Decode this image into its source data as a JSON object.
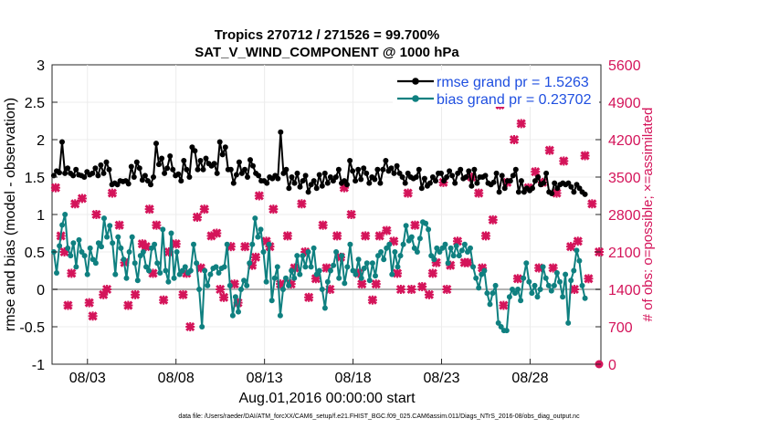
{
  "chart_data": {
    "type": "line",
    "title": "Tropics 270712 / 271526 = 99.700%",
    "subtitle": "SAT_V_WIND_COMPONENT @ 1000 hPa",
    "xlabel": "Aug.01,2016 00:00:00 start",
    "ylabel": "rmse and bias (model - observation)",
    "ylabel_right": "# of obs: o=possible; ×=assimilated",
    "footer": "data file: /Users/raeder/DAI/ATM_forcXX/CAM6_setup/f.e21.FHIST_BGC.f09_025.CAM6assim.011/Diags_NTrS_2016-08/obs_diag_output.nc",
    "x_tick_labels": [
      "08/03",
      "08/08",
      "08/13",
      "08/18",
      "08/23",
      "08/28"
    ],
    "x_tick_days": [
      3,
      8,
      13,
      18,
      23,
      28
    ],
    "xlim": [
      1,
      32
    ],
    "ylim": [
      -1,
      3
    ],
    "y_ticks": [
      -1,
      -0.5,
      0,
      0.5,
      1,
      1.5,
      2,
      2.5,
      3
    ],
    "y_tick_labels": [
      "-1",
      "-0.5",
      "0",
      "0.5",
      "1",
      "1.5",
      "2",
      "2.5",
      "3"
    ],
    "ylim_right": [
      0,
      5600
    ],
    "y_ticks_right": [
      0,
      700,
      1400,
      2100,
      2800,
      3500,
      4200,
      4900,
      5600
    ],
    "grid": true,
    "legend_position": "top-right",
    "colors": {
      "rmse": "#000000",
      "bias": "#0f8080",
      "obs": "#d4145a",
      "zero_line": "#b3b3b3",
      "legend_text": "#1f4fe0"
    },
    "series": [
      {
        "name": "rmse grand pr = 1.5263",
        "color": "#000000",
        "values": [
          1.52,
          1.58,
          1.56,
          1.97,
          1.55,
          1.62,
          1.55,
          1.52,
          1.6,
          1.53,
          1.52,
          1.5,
          1.57,
          1.53,
          1.55,
          1.62,
          1.52,
          1.66,
          1.55,
          1.7,
          1.6,
          1.4,
          1.42,
          1.4,
          1.45,
          1.44,
          1.45,
          1.41,
          1.64,
          1.5,
          1.7,
          1.62,
          1.46,
          1.52,
          1.45,
          1.4,
          1.5,
          1.95,
          1.67,
          1.75,
          1.55,
          1.62,
          1.78,
          1.6,
          1.52,
          1.54,
          1.45,
          1.72,
          1.6,
          1.5,
          1.9,
          1.85,
          1.6,
          1.72,
          1.6,
          1.75,
          1.68,
          1.65,
          1.68,
          1.55,
          1.97,
          1.8,
          1.9,
          1.6,
          1.6,
          1.42,
          1.53,
          1.7,
          1.55,
          1.6,
          1.5,
          1.73,
          1.65,
          1.55,
          1.52,
          1.45,
          1.45,
          1.42,
          1.5,
          1.48,
          1.52,
          1.48,
          2.1,
          1.55,
          1.6,
          1.35,
          1.5,
          1.42,
          1.55,
          1.37,
          1.45,
          1.52,
          1.3,
          1.4,
          1.45,
          1.35,
          1.53,
          1.38,
          1.55,
          1.42,
          1.5,
          1.45,
          1.5,
          1.6,
          1.42,
          1.45,
          1.4,
          1.72,
          1.58,
          1.45,
          1.6,
          1.47,
          1.62,
          1.55,
          1.42,
          1.5,
          1.47,
          1.6,
          1.42,
          1.6,
          1.72,
          1.58,
          1.62,
          1.55,
          1.65,
          1.55,
          1.5,
          1.42,
          1.55,
          1.5,
          1.48,
          1.5,
          1.6,
          1.35,
          1.48,
          1.38,
          1.42,
          1.5,
          1.45,
          1.55,
          1.55,
          1.45,
          1.5,
          1.58,
          1.52,
          1.42,
          1.55,
          1.6,
          1.48,
          1.5,
          1.58,
          1.38,
          1.6,
          1.42,
          1.5,
          1.5,
          1.52,
          1.42,
          1.4,
          1.43,
          1.55,
          1.3,
          1.52,
          1.35,
          1.45,
          1.45,
          1.52,
          1.6,
          1.3,
          1.45,
          1.3,
          1.35,
          1.32,
          1.35,
          1.45,
          1.5,
          1.4,
          1.42,
          1.55,
          1.3,
          1.28,
          1.42,
          1.35,
          1.4,
          1.42,
          1.4,
          1.42,
          1.37,
          1.3,
          1.4,
          1.35,
          1.3,
          1.27
        ]
      },
      {
        "name": "bias grand pr = 0.23702",
        "color": "#0f8080",
        "values": [
          0.5,
          0.22,
          0.58,
          0.86,
          1.0,
          0.55,
          0.45,
          0.62,
          0.3,
          0.66,
          0.5,
          0.45,
          0.2,
          0.55,
          0.4,
          0.35,
          0.62,
          0.57,
          0.95,
          0.7,
          0.85,
          0.62,
          0.2,
          0.7,
          0.55,
          0.4,
          0.15,
          0.5,
          0.7,
          0.35,
          0.12,
          0.45,
          0.5,
          0.3,
          0.25,
          0.55,
          0.6,
          0.35,
          0.22,
          0.8,
          0.25,
          0.1,
          0.75,
          0.15,
          0.5,
          0.2,
          0.25,
          0.3,
          0.22,
          0.25,
          0.6,
          0.35,
          0.0,
          -0.5,
          0.25,
          0.05,
          0.2,
          0.28,
          0.3,
          0.22,
          0.28,
          0.3,
          0.6,
          0.05,
          -0.35,
          -0.1,
          -0.3,
          0.0,
          0.12,
          0.05,
          0.35,
          0.6,
          0.95,
          0.7,
          0.8,
          0.5,
          0.1,
          0.6,
          -0.15,
          0.15,
          0.3,
          -0.35,
          0.0,
          0.15,
          0.05,
          0.25,
          0.15,
          0.45,
          0.2,
          0.45,
          0.3,
          0.5,
          0.3,
          0.55,
          0.2,
          0.25,
          0.0,
          -0.25,
          0.1,
          0.25,
          0.32,
          0.5,
          0.15,
          0.45,
          0.08,
          0.3,
          0.6,
          0.25,
          0.2,
          0.4,
          0.15,
          0.28,
          0.35,
          0.12,
          0.35,
          0.18,
          0.45,
          0.5,
          0.4,
          0.55,
          0.6,
          0.2,
          0.5,
          0.3,
          0.45,
          0.6,
          0.85,
          0.65,
          0.7,
          0.55,
          0.5,
          0.68,
          0.9,
          0.88,
          0.8,
          0.45,
          0.4,
          0.55,
          0.5,
          0.55,
          0.6,
          0.35,
          0.55,
          0.45,
          0.58,
          0.45,
          0.52,
          0.6,
          0.5,
          0.55,
          0.3,
          0.15,
          0.02,
          0.2,
          0.25,
          -0.05,
          -0.2,
          -0.05,
          0.05,
          -0.45,
          -0.5,
          -0.55,
          -0.55,
          -0.1,
          0.0,
          -0.05,
          0.0,
          -0.15,
          0.15,
          0.35,
          0.1,
          -0.05,
          0.05,
          -0.1,
          0.0,
          0.3,
          0.15,
          0.05,
          -0.02,
          0.05,
          0.22,
          0.1,
          -0.1,
          0.2,
          -0.45,
          0.12,
          0.25,
          0.52,
          0.38,
          0.05,
          -0.12
        ]
      }
    ],
    "obs_assimilated": {
      "name": "# of obs assimilated",
      "marker": "x",
      "color": "#d4145a",
      "x_days": [
        1.2,
        1.5,
        1.9,
        2.3,
        2.7,
        3.1,
        3.5,
        3.9,
        4.4,
        4.8,
        5.3,
        5.7,
        6.1,
        6.5,
        6.9,
        7.3,
        7.6,
        8.0,
        8.4,
        8.8,
        9.2,
        9.6,
        10.0,
        10.3,
        10.7,
        11.1,
        11.5,
        11.9,
        12.3,
        12.7,
        13.1,
        13.5,
        13.9,
        14.3,
        14.7,
        15.1,
        15.5,
        15.9,
        16.3,
        16.7,
        17.1,
        17.5,
        17.9,
        18.3,
        18.7,
        19.1,
        19.5,
        19.9,
        20.3,
        20.7,
        21.1,
        21.5,
        21.9,
        22.3,
        22.7,
        23.1,
        23.5,
        23.9,
        24.3,
        24.7,
        25.1,
        25.5,
        25.9,
        26.3,
        26.7,
        27.1,
        27.5,
        27.9,
        28.3,
        28.7,
        29.1,
        29.5,
        29.9,
        30.3,
        30.7,
        31.1,
        31.5,
        31.9,
        1.7,
        3.3,
        5.1,
        6.7,
        8.6,
        10.5,
        12.5,
        14.5,
        16.5,
        18.5,
        20.5,
        22.5,
        24.5,
        26.5,
        28.5,
        30.5,
        2.1,
        4.1,
        6.3,
        9.4,
        11.3,
        13.3,
        15.3,
        17.3,
        19.3,
        21.3,
        23.3,
        25.3,
        27.3,
        29.3,
        31.3
      ],
      "values": [
        3300,
        2400,
        1100,
        3000,
        3100,
        1150,
        2800,
        1300,
        3200,
        2600,
        1100,
        1300,
        2250,
        2900,
        2600,
        1200,
        2100,
        2250,
        1300,
        700,
        2750,
        2900,
        2400,
        2450,
        1250,
        2200,
        1150,
        2200,
        1850,
        3150,
        2300,
        2900,
        1500,
        2400,
        1800,
        3000,
        1250,
        1600,
        2600,
        1400,
        2400,
        3300,
        2800,
        1700,
        2400,
        1200,
        2400,
        2500,
        2300,
        1400,
        3200,
        2600,
        1450,
        1300,
        1900,
        3400,
        1850,
        2300,
        1900,
        3500,
        3200,
        2400,
        2700,
        4850,
        3400,
        4200,
        4500,
        3300,
        3600,
        3400,
        4000,
        3200,
        3800,
        2200,
        2300,
        3900,
        3000,
        2100,
        2100,
        900,
        1900,
        1700,
        1700,
        1400,
        2000,
        1500,
        1800,
        1500,
        1700,
        1700,
        1900,
        1100,
        1800,
        1400,
        1700,
        1400,
        2200,
        1800,
        1500,
        2200,
        2100,
        2000,
        1500,
        1400,
        1400,
        1800,
        1600,
        1800,
        1600
      ]
    },
    "obs_possible_marker": {
      "x_day": 32.0,
      "value": 0
    }
  }
}
